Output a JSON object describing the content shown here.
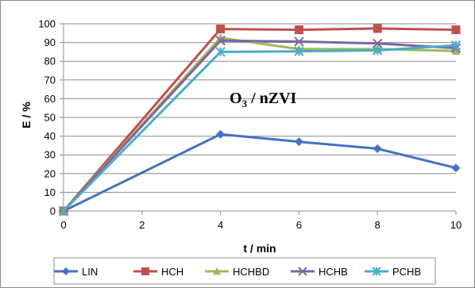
{
  "chart_data": {
    "type": "line",
    "x": [
      0,
      4,
      6,
      8,
      10
    ],
    "xlabel": "t / min",
    "ylabel": "E / %",
    "xlim": [
      0,
      10
    ],
    "ylim": [
      0,
      100
    ],
    "xticks": [
      0,
      2,
      4,
      6,
      8,
      10
    ],
    "yticks": [
      0,
      10,
      20,
      30,
      40,
      50,
      60,
      70,
      80,
      90,
      100
    ],
    "grid": "horizontal major",
    "legend_position": "bottom",
    "annotation": {
      "base": "O",
      "sub": "3",
      "rest": " / nZVI"
    },
    "series": [
      {
        "name": "LIN",
        "color": "#4472C4",
        "marker": "diamond",
        "values": [
          0,
          41,
          37,
          33.3,
          23
        ]
      },
      {
        "name": "HCH",
        "color": "#C0504D",
        "marker": "square",
        "values": [
          0,
          97.2,
          96.8,
          97.5,
          96.8
        ]
      },
      {
        "name": "HCHBD",
        "color": "#9BBB59",
        "marker": "triangle",
        "values": [
          0,
          92.5,
          86.5,
          86.5,
          85.5
        ]
      },
      {
        "name": "HCHB",
        "color": "#8064A2",
        "marker": "x",
        "values": [
          0,
          91,
          90.5,
          89.5,
          87
        ]
      },
      {
        "name": "PCHB",
        "color": "#4BACC6",
        "marker": "asterisk",
        "values": [
          0,
          85,
          85.3,
          85.8,
          88.5
        ]
      }
    ]
  }
}
